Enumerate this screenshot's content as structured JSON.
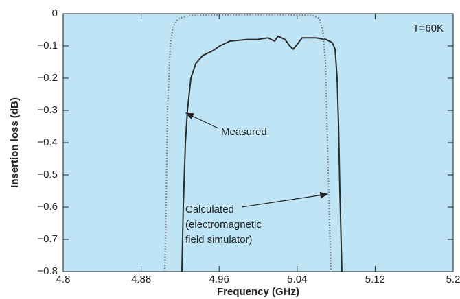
{
  "chart_data": {
    "type": "line",
    "xlabel": "Frequency (GHz)",
    "ylabel": "Insertion loss (dB)",
    "xlim": [
      4.8,
      5.2
    ],
    "xticks": [
      4.8,
      4.88,
      4.96,
      5.04,
      5.12,
      5.2
    ],
    "ylim": [
      -0.8,
      0
    ],
    "yticks": [
      0,
      {
        "value": -0.1,
        "label": "−0.1"
      },
      {
        "value": -0.2,
        "label": "−0.2"
      },
      {
        "value": -0.3,
        "label": "−0.3"
      },
      {
        "value": -0.4,
        "label": "−0.4"
      },
      {
        "value": -0.5,
        "label": "−0.5"
      },
      {
        "value": -0.6,
        "label": "−0.6"
      },
      {
        "value": -0.7,
        "label": "−0.7"
      },
      {
        "value": -0.8,
        "label": "−0.8"
      }
    ],
    "background": "#bfe4f6",
    "annotations": [
      "T=60K",
      "(electromagnetic",
      "field simulator)"
    ],
    "series": [
      {
        "name": "Measured",
        "color": "#2b2b2b",
        "dotted": false,
        "x": [
          4.9218,
          4.9232,
          4.9254,
          4.9275,
          4.931,
          4.936,
          4.943,
          4.9535,
          4.9606,
          4.971,
          4.9887,
          4.9993,
          5.0099,
          5.0169,
          5.0204,
          5.0275,
          5.0324,
          5.0359,
          5.0401,
          5.0451,
          5.0592,
          5.0697,
          5.0761,
          5.0789,
          5.081,
          5.0825,
          5.0838,
          5.0859
        ],
        "values": [
          -0.8,
          -0.6,
          -0.4,
          -0.3,
          -0.2,
          -0.155,
          -0.13,
          -0.115,
          -0.1,
          -0.085,
          -0.08,
          -0.08,
          -0.075,
          -0.085,
          -0.07,
          -0.08,
          -0.1,
          -0.11,
          -0.095,
          -0.075,
          -0.075,
          -0.08,
          -0.09,
          -0.11,
          -0.2,
          -0.35,
          -0.55,
          -0.8
        ]
      },
      {
        "name": "Calculated",
        "color": "#7a7a7a",
        "dotted": true,
        "x": [
          4.9042,
          4.9056,
          4.907,
          4.9099,
          4.9127,
          4.9183,
          4.9289,
          4.9465,
          5.0169,
          5.0556,
          5.0627,
          5.0662,
          5.069,
          5.0711,
          5.0732,
          5.0746
        ],
        "values": [
          -0.8,
          -0.6,
          -0.3,
          -0.1,
          -0.04,
          -0.015,
          -0.006,
          -0.004,
          -0.003,
          -0.005,
          -0.015,
          -0.05,
          -0.15,
          -0.4,
          -0.65,
          -0.8
        ]
      }
    ]
  }
}
